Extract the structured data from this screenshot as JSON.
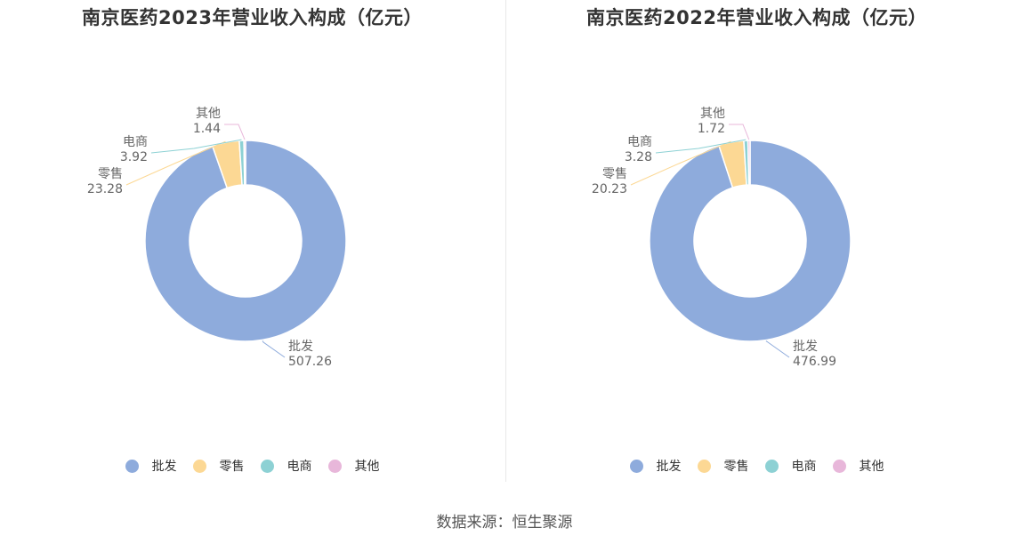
{
  "source": "数据来源：恒生聚源",
  "colors": {
    "批发": "#8eabdc",
    "零售": "#fcd894",
    "电商": "#8dd1d4",
    "其他": "#e8b7da"
  },
  "chart_data": [
    {
      "type": "pie",
      "title": "南京医药2023年营业收入构成（亿元）",
      "categories": [
        "批发",
        "零售",
        "电商",
        "其他"
      ],
      "values": [
        507.26,
        23.28,
        3.92,
        1.44
      ],
      "labels": [
        "507.26",
        "23.28",
        "3.92",
        "1.44"
      ],
      "legend": "bottom"
    },
    {
      "type": "pie",
      "title": "南京医药2022年营业收入构成（亿元）",
      "categories": [
        "批发",
        "零售",
        "电商",
        "其他"
      ],
      "values": [
        476.99,
        20.23,
        3.28,
        1.72
      ],
      "labels": [
        "476.99",
        "20.23",
        "3.28",
        "1.72"
      ],
      "legend": "bottom"
    }
  ]
}
